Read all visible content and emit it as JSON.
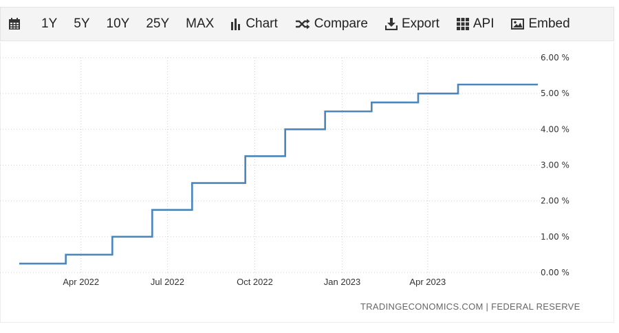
{
  "toolbar": {
    "calendar_icon": "calendar-icon",
    "ranges": [
      "1Y",
      "5Y",
      "10Y",
      "25Y",
      "MAX"
    ],
    "chart_label": "Chart",
    "compare_label": "Compare",
    "export_label": "Export",
    "api_label": "API",
    "embed_label": "Embed"
  },
  "source_text": "TRADINGECONOMICS.COM | FEDERAL RESERVE",
  "chart_data": {
    "type": "line",
    "step": true,
    "title": "",
    "xlabel": "",
    "ylabel": "",
    "line_color": "#4a86bb",
    "grid": true,
    "y_ticks": [
      "0.00 %",
      "1.00 %",
      "2.00 %",
      "3.00 %",
      "4.00 %",
      "5.00 %",
      "6.00 %"
    ],
    "x_ticks": [
      {
        "date": "2022-04-01",
        "label": "Apr 2022"
      },
      {
        "date": "2022-07-01",
        "label": "Jul 2022"
      },
      {
        "date": "2022-10-01",
        "label": "Oct 2022"
      },
      {
        "date": "2023-01-01",
        "label": "Jan 2023"
      },
      {
        "date": "2023-04-01",
        "label": "Apr 2023"
      }
    ],
    "xlim": [
      "2022-01-26",
      "2023-07-26"
    ],
    "ylim": [
      0,
      6
    ],
    "series": [
      {
        "points": [
          {
            "x": "2022-01-26",
            "y": 0.25
          },
          {
            "x": "2022-03-16",
            "y": 0.5
          },
          {
            "x": "2022-05-04",
            "y": 1.0
          },
          {
            "x": "2022-06-15",
            "y": 1.75
          },
          {
            "x": "2022-07-27",
            "y": 2.5
          },
          {
            "x": "2022-09-21",
            "y": 3.25
          },
          {
            "x": "2022-11-02",
            "y": 4.0
          },
          {
            "x": "2022-12-14",
            "y": 4.5
          },
          {
            "x": "2023-02-01",
            "y": 4.75
          },
          {
            "x": "2023-03-22",
            "y": 5.0
          },
          {
            "x": "2023-05-03",
            "y": 5.25
          },
          {
            "x": "2023-07-26",
            "y": 5.25
          }
        ]
      }
    ]
  }
}
